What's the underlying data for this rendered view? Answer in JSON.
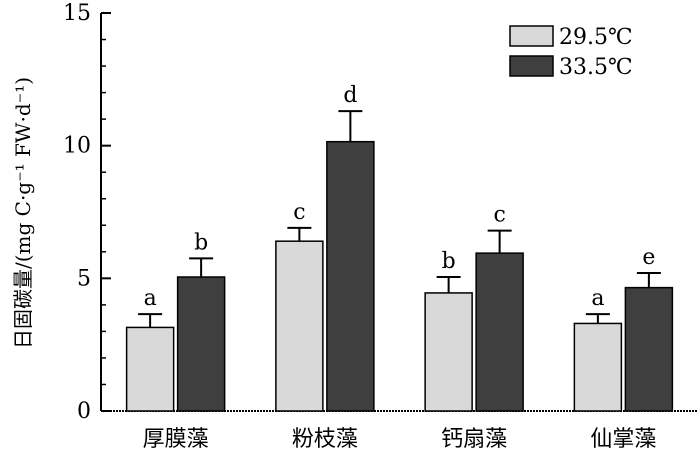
{
  "chart_data": {
    "type": "bar",
    "ylabel": "日固碳量/(mg C·g⁻¹ FW·d⁻¹)",
    "xlabel": "",
    "ylim": [
      0,
      15
    ],
    "yticks": [
      0,
      5,
      10,
      15
    ],
    "categories": [
      "厚膜藻",
      "粉枝藻",
      "钙扇藻",
      "仙掌藻"
    ],
    "series": [
      {
        "name": "29.5℃",
        "color": "#d9d9d9",
        "values": [
          3.15,
          6.4,
          4.45,
          3.3
        ],
        "errors": [
          0.5,
          0.5,
          0.6,
          0.35
        ],
        "labels": [
          "a",
          "c",
          "b",
          "a"
        ]
      },
      {
        "name": "33.5℃",
        "color": "#3f3f3f",
        "values": [
          5.05,
          10.15,
          5.95,
          4.65
        ],
        "errors": [
          0.7,
          1.15,
          0.85,
          0.55
        ],
        "labels": [
          "b",
          "d",
          "c",
          "e"
        ]
      }
    ],
    "legend_position": "top-right",
    "grid": false
  }
}
